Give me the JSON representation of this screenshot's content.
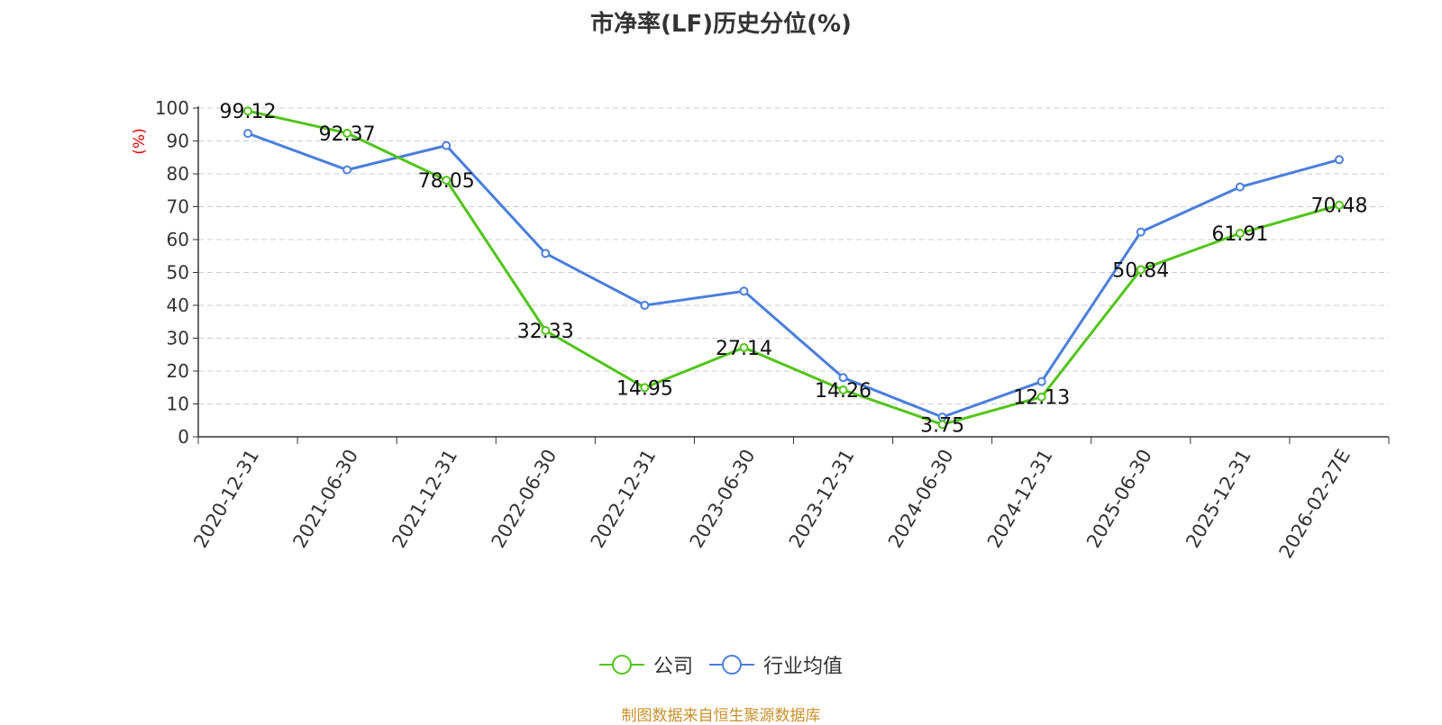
{
  "chart_data": {
    "type": "line",
    "title": "市净率(LF)历史分位(%)",
    "ylabel": "(%)",
    "ylim": [
      0,
      100
    ],
    "yticks": [
      0,
      10,
      20,
      30,
      40,
      50,
      60,
      70,
      80,
      90,
      100
    ],
    "grid": true,
    "legend_position": "bottom",
    "categories": [
      "2020-12-31",
      "2021-06-30",
      "2021-12-31",
      "2022-06-30",
      "2022-12-31",
      "2023-06-30",
      "2023-12-31",
      "2024-06-30",
      "2024-12-31",
      "2025-06-30",
      "2025-12-31",
      "2026-02-27E"
    ],
    "series": [
      {
        "name": "公司",
        "color": "#52c41a",
        "show_labels": true,
        "values": [
          99.12,
          92.37,
          78.05,
          32.33,
          14.95,
          27.14,
          14.26,
          3.75,
          12.13,
          50.84,
          61.91,
          70.48
        ]
      },
      {
        "name": "行业均值",
        "color": "#4a7fdc",
        "show_labels": false,
        "values": [
          92.3,
          81.2,
          88.6,
          55.8,
          40.0,
          44.3,
          18.0,
          6.0,
          16.8,
          62.3,
          76.0,
          84.3
        ]
      }
    ],
    "source": "制图数据来自恒生聚源数据库",
    "source_color": "#c8912d",
    "ylabel_color": "#e00000"
  }
}
